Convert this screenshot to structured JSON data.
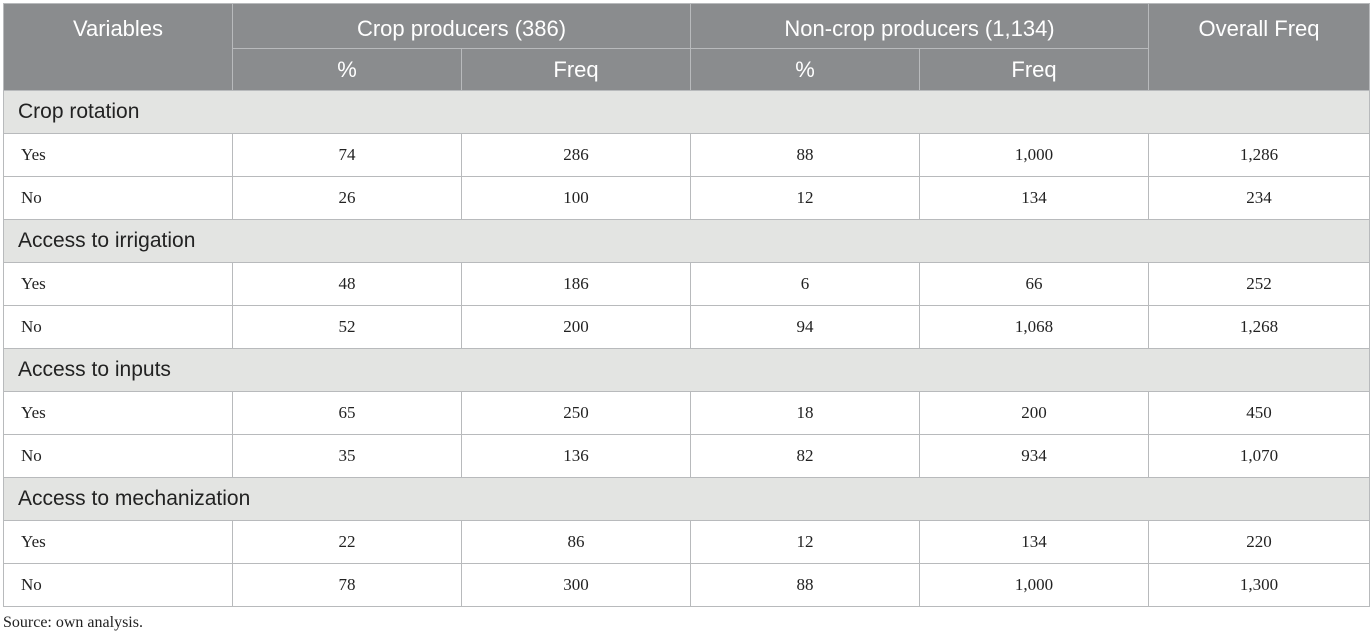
{
  "header": {
    "variables": "Variables",
    "crop": "Crop producers (386)",
    "noncrop": "Non-crop producers (1,134)",
    "overall": "Overall Freq",
    "pct": "%",
    "freq": "Freq"
  },
  "groups": [
    {
      "title": "Crop rotation",
      "rows": [
        {
          "label": "Yes",
          "c_pct": "74",
          "c_freq": "286",
          "n_pct": "88",
          "n_freq": "1,000",
          "overall": "1,286"
        },
        {
          "label": "No",
          "c_pct": "26",
          "c_freq": "100",
          "n_pct": "12",
          "n_freq": "134",
          "overall": "234"
        }
      ]
    },
    {
      "title": "Access to irrigation",
      "rows": [
        {
          "label": "Yes",
          "c_pct": "48",
          "c_freq": "186",
          "n_pct": "6",
          "n_freq": "66",
          "overall": "252"
        },
        {
          "label": "No",
          "c_pct": "52",
          "c_freq": "200",
          "n_pct": "94",
          "n_freq": "1,068",
          "overall": "1,268"
        }
      ]
    },
    {
      "title": "Access to inputs",
      "rows": [
        {
          "label": "Yes",
          "c_pct": "65",
          "c_freq": "250",
          "n_pct": "18",
          "n_freq": "200",
          "overall": "450"
        },
        {
          "label": "No",
          "c_pct": "35",
          "c_freq": "136",
          "n_pct": "82",
          "n_freq": "934",
          "overall": "1,070"
        }
      ]
    },
    {
      "title": "Access to mechanization",
      "rows": [
        {
          "label": "Yes",
          "c_pct": "22",
          "c_freq": "86",
          "n_pct": "12",
          "n_freq": "134",
          "overall": "220"
        },
        {
          "label": "No",
          "c_pct": "78",
          "c_freq": "300",
          "n_pct": "88",
          "n_freq": "1,000",
          "overall": "1,300"
        }
      ]
    }
  ],
  "source": "Source: own analysis."
}
